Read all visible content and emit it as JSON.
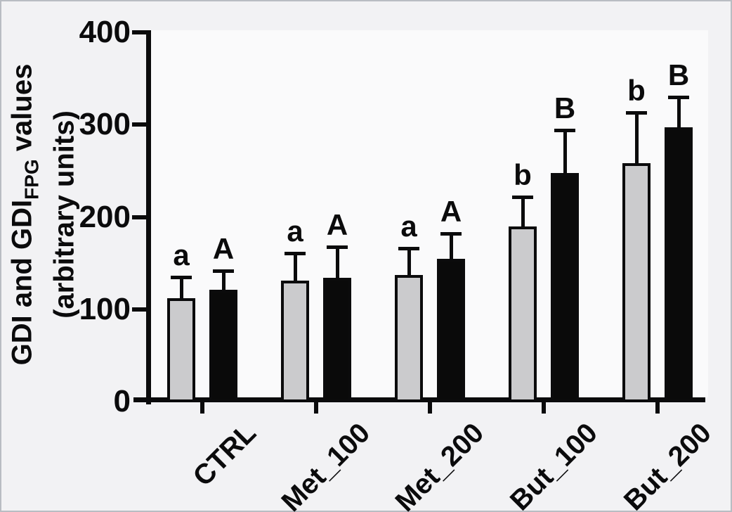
{
  "figure": {
    "bg": "#f2f2f4",
    "plot_bg": "#fafafb",
    "ink": "#0b0b0c",
    "gray_fill": "#cbcbcd",
    "black_fill": "#0a0a0a"
  },
  "ylabel": {
    "line1_pre": "GDI and GDI",
    "line1_sub": "FPG",
    "line1_post": " values",
    "line2": "(arbitrary units)"
  },
  "chart_data": {
    "type": "bar",
    "title": "",
    "xlabel": "",
    "ylabel": "GDI and GDI_FPG values (arbitrary units)",
    "categories": [
      "CTRL",
      "Met_100",
      "Met_200",
      "But_100",
      "But_200"
    ],
    "series": [
      {
        "name": "GDI",
        "fill": "#cbcbcd",
        "values": [
          112,
          131,
          137,
          190,
          258
        ],
        "errors_up": [
          23,
          30,
          29,
          32,
          55
        ],
        "letters": [
          "a",
          "a",
          "a",
          "b",
          "b"
        ]
      },
      {
        "name": "GDI_FPG",
        "fill": "#0a0a0a",
        "values": [
          121,
          134,
          155,
          248,
          297
        ],
        "errors_up": [
          21,
          34,
          27,
          46,
          33
        ],
        "letters": [
          "A",
          "A",
          "A",
          "B",
          "B"
        ]
      }
    ],
    "ylim": [
      0,
      400
    ],
    "yticks": [
      0,
      100,
      200,
      300,
      400
    ],
    "grid": false,
    "legend": false,
    "error_bars": "upper only, with caps",
    "xtick_label_rotation_deg": -45
  }
}
